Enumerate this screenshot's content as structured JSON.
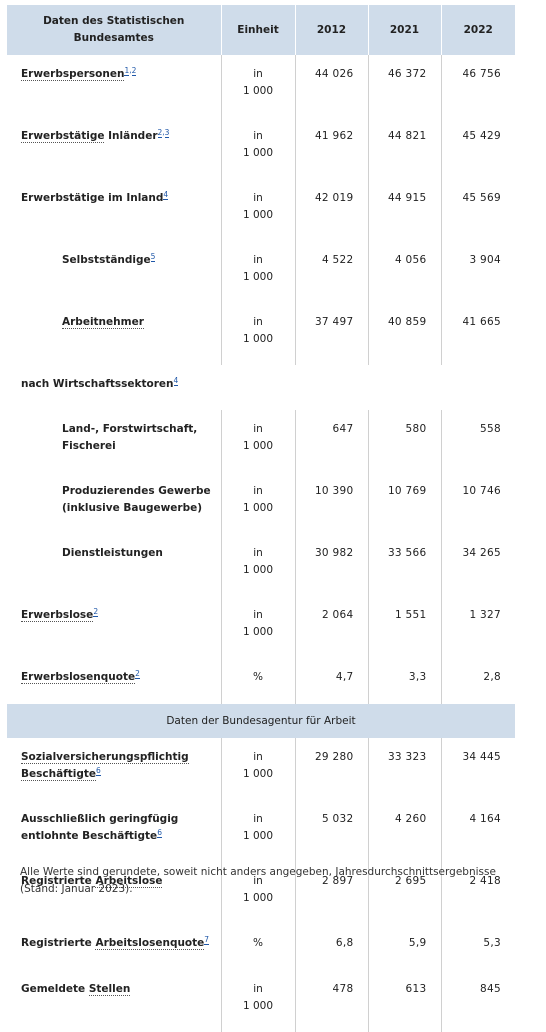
{
  "header": {
    "col_label": "Daten des Statistischen Bundesamtes",
    "col_unit": "Einheit",
    "years": [
      "2012",
      "2021",
      "2022"
    ]
  },
  "rows": [
    {
      "label": "Erwerbspersonen",
      "sup": "1,2",
      "unit": "in 1 000",
      "values": [
        "44 026",
        "46 372",
        "46 756"
      ]
    },
    {
      "label_a": "Erwerbstätige",
      "label_b": " Inländer",
      "sup": "2,3",
      "unit": "in 1 000",
      "values": [
        "41 962",
        "44 821",
        "45 429"
      ]
    },
    {
      "label": "Erwerbstätige im Inland",
      "sup": "4",
      "unit": "in 1 000",
      "values": [
        "42 019",
        "44 915",
        "45 569"
      ]
    },
    {
      "label": "Selbstständige",
      "sup": "5",
      "unit": "in 1 000",
      "values": [
        "4 522",
        "4 056",
        "3 904"
      ]
    },
    {
      "label": "Arbeitnehmer",
      "unit": "in 1 000",
      "values": [
        "37 497",
        "40 859",
        "41 665"
      ]
    },
    {
      "label": "nach Wirtschaftssektoren",
      "sup": "4"
    },
    {
      "label": "Land-, Forstwirtschaft, Fischerei",
      "unit": "in 1 000",
      "values": [
        "647",
        "580",
        "558"
      ]
    },
    {
      "label": "Produzierendes Gewerbe (inklusive Baugewerbe)",
      "unit": "in 1 000",
      "values": [
        "10 390",
        "10 769",
        "10 746"
      ]
    },
    {
      "label": "Dienstleistungen",
      "unit": "in 1 000",
      "values": [
        "30 982",
        "33 566",
        "34 265"
      ]
    },
    {
      "label": "Erwerbslose",
      "sup": "2",
      "unit": "in 1 000",
      "values": [
        "2 064",
        "1 551",
        "1 327"
      ]
    },
    {
      "label": "Erwerbslosenquote",
      "sup": "2",
      "unit": "%",
      "values": [
        "4,7",
        "3,3",
        "2,8"
      ]
    }
  ],
  "band": "Daten der Bundesagentur für Arbeit",
  "rows2": [
    {
      "label_a": "Sozialversicherungspflichtig",
      "label_b": "Beschäftigte",
      "sup": "6",
      "unit": "in 1 000",
      "values": [
        "29 280",
        "33 323",
        "34 445"
      ]
    },
    {
      "label_a": "Ausschließlich geringfügig",
      "label_b": "entlohnte Beschäftigte",
      "sup": "6",
      "unit": "in 1 000",
      "values": [
        "5 032",
        "4 260",
        "4 164"
      ]
    },
    {
      "label_a": "Registrierte ",
      "label_b": "Arbeitslose",
      "unit": "in 1 000",
      "values": [
        "2 897",
        "2 695",
        "2 418"
      ]
    },
    {
      "label_a": "Registrierte ",
      "label_b": "Arbeitslosenquote",
      "sup": "7",
      "unit": "%",
      "values": [
        "6,8",
        "5,9",
        "5,3"
      ]
    },
    {
      "label_a": "Gemeldete ",
      "label_b": "Stellen",
      "unit": "in 1 000",
      "values": [
        "478",
        "613",
        "845"
      ]
    }
  ],
  "footnote": "Alle Werte sind gerundete, soweit nicht anders angegeben, Jahresdurchschnittsergebnisse (Stand: Januar 2023)."
}
